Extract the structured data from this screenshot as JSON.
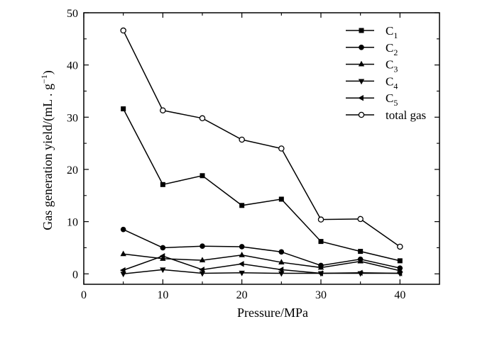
{
  "chart_data": {
    "type": "line",
    "xlabel": "Pressure/MPa",
    "ylabel": "Gas generation yield/(mL . g",
    "ylabel_sup": "−1",
    "ylabel_tail": ")",
    "xlim": [
      0,
      45
    ],
    "ylim": [
      -2,
      50
    ],
    "xticks": [
      0,
      10,
      20,
      30,
      40
    ],
    "yticks": [
      0,
      10,
      20,
      30,
      40,
      50
    ],
    "grid": false,
    "legend_position": "top-right",
    "x": [
      5,
      10,
      15,
      20,
      25,
      30,
      35,
      40
    ],
    "series": [
      {
        "name": "C",
        "sub": "1",
        "marker": "square",
        "values": [
          31.6,
          17.1,
          18.8,
          13.1,
          14.3,
          6.2,
          4.3,
          2.5
        ]
      },
      {
        "name": "C",
        "sub": "2",
        "marker": "circle",
        "values": [
          8.5,
          5.0,
          5.3,
          5.2,
          4.2,
          1.6,
          2.8,
          1.1
        ]
      },
      {
        "name": "C",
        "sub": "3",
        "marker": "triangle-up",
        "values": [
          3.8,
          2.9,
          2.6,
          3.6,
          2.2,
          1.2,
          2.4,
          0.6
        ]
      },
      {
        "name": "C",
        "sub": "4",
        "marker": "triangle-down",
        "values": [
          0.0,
          0.8,
          0.1,
          0.2,
          0.1,
          0.1,
          0.1,
          0.1
        ]
      },
      {
        "name": "C",
        "sub": "5",
        "marker": "triangle-left",
        "values": [
          0.7,
          3.4,
          0.8,
          1.9,
          0.8,
          0.1,
          0.2,
          0.1
        ]
      },
      {
        "name": "total gas",
        "sub": "",
        "marker": "open-circle",
        "values": [
          46.6,
          31.3,
          29.8,
          25.7,
          24.0,
          10.4,
          10.5,
          5.2
        ]
      }
    ]
  }
}
